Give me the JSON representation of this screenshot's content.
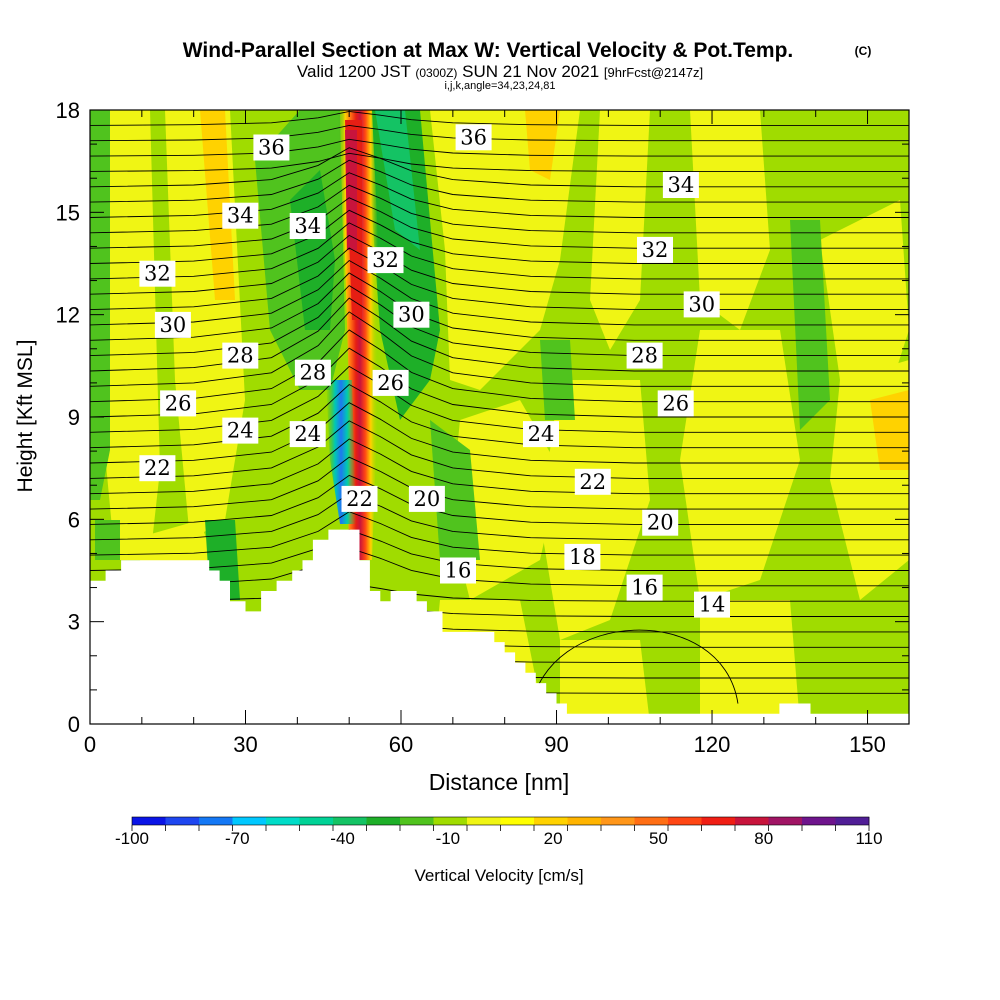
{
  "chart_data": {
    "type": "heatmap",
    "title": "Wind-Parallel Section at Max W: Vertical Velocity & Pot.Temp.",
    "copyright_mark": "(C)",
    "subtitle": "Valid 1200 JST",
    "subtitle_utc": "(0300Z)",
    "subtitle_date": "SUN 21 Nov 2021",
    "subtitle_fcst": "[9hrFcst@2147z]",
    "subtitle2": "i,j,k,angle=34,23,24,81",
    "xlabel": "Distance [nm]",
    "ylabel": "Height [Kft MSL]",
    "xlim": [
      0,
      158
    ],
    "ylim": [
      0,
      18
    ],
    "xticks": [
      "0",
      "30",
      "60",
      "90",
      "120",
      "150"
    ],
    "yticks": [
      "0",
      "3",
      "6",
      "9",
      "12",
      "15",
      "18"
    ],
    "colorbar": {
      "label": "Vertical Velocity [cm/s]",
      "tick_labels": [
        "-100",
        "-70",
        "-40",
        "-10",
        "20",
        "50",
        "80",
        "110"
      ],
      "colors": [
        "#0a14e6",
        "#1e46f0",
        "#1478f5",
        "#00c8ff",
        "#00dcc8",
        "#00d296",
        "#14c364",
        "#1eaf28",
        "#50c31e",
        "#a0dc00",
        "#f0f514",
        "#ffff00",
        "#ffd200",
        "#ffb400",
        "#ff9619",
        "#ff6e14",
        "#ff4614",
        "#f01e14",
        "#c8143c",
        "#a01464",
        "#6e148c",
        "#501e96"
      ]
    },
    "contour_field": "potential temperature",
    "contour_labels": [
      {
        "text": "36",
        "x": 35,
        "y": 16.9
      },
      {
        "text": "36",
        "x": 74,
        "y": 17.2
      },
      {
        "text": "34",
        "x": 29,
        "y": 14.9
      },
      {
        "text": "34",
        "x": 42,
        "y": 14.6
      },
      {
        "text": "34",
        "x": 114,
        "y": 15.8
      },
      {
        "text": "32",
        "x": 13,
        "y": 13.2
      },
      {
        "text": "32",
        "x": 57,
        "y": 13.6
      },
      {
        "text": "32",
        "x": 109,
        "y": 13.9
      },
      {
        "text": "30",
        "x": 16,
        "y": 11.7
      },
      {
        "text": "30",
        "x": 62,
        "y": 12.0
      },
      {
        "text": "30",
        "x": 118,
        "y": 12.3
      },
      {
        "text": "28",
        "x": 29,
        "y": 10.8
      },
      {
        "text": "28",
        "x": 43,
        "y": 10.3
      },
      {
        "text": "28",
        "x": 107,
        "y": 10.8
      },
      {
        "text": "26",
        "x": 17,
        "y": 9.4
      },
      {
        "text": "26",
        "x": 58,
        "y": 10.0
      },
      {
        "text": "26",
        "x": 113,
        "y": 9.4
      },
      {
        "text": "24",
        "x": 29,
        "y": 8.6
      },
      {
        "text": "24",
        "x": 42,
        "y": 8.5
      },
      {
        "text": "24",
        "x": 87,
        "y": 8.5
      },
      {
        "text": "22",
        "x": 13,
        "y": 7.5
      },
      {
        "text": "22",
        "x": 52,
        "y": 6.6
      },
      {
        "text": "22",
        "x": 97,
        "y": 7.1
      },
      {
        "text": "20",
        "x": 65,
        "y": 6.6
      },
      {
        "text": "20",
        "x": 110,
        "y": 5.9
      },
      {
        "text": "18",
        "x": 95,
        "y": 4.9
      },
      {
        "text": "16",
        "x": 71,
        "y": 4.5
      },
      {
        "text": "16",
        "x": 107,
        "y": 4.0
      },
      {
        "text": "14",
        "x": 120,
        "y": 3.5
      }
    ],
    "terrain_profile": [
      [
        0,
        4.2
      ],
      [
        3,
        4.2
      ],
      [
        3,
        4.5
      ],
      [
        6,
        4.5
      ],
      [
        6,
        4.8
      ],
      [
        23,
        4.8
      ],
      [
        23,
        4.5
      ],
      [
        25,
        4.5
      ],
      [
        25,
        4.2
      ],
      [
        27,
        4.2
      ],
      [
        27,
        3.6
      ],
      [
        30,
        3.6
      ],
      [
        30,
        3.3
      ],
      [
        33,
        3.3
      ],
      [
        33,
        3.9
      ],
      [
        36,
        3.9
      ],
      [
        36,
        4.2
      ],
      [
        39,
        4.2
      ],
      [
        39,
        4.5
      ],
      [
        41,
        4.5
      ],
      [
        41,
        4.8
      ],
      [
        43,
        4.8
      ],
      [
        43,
        5.4
      ],
      [
        46,
        5.4
      ],
      [
        46,
        5.7
      ],
      [
        52,
        5.7
      ],
      [
        52,
        4.8
      ],
      [
        54,
        4.8
      ],
      [
        54,
        3.9
      ],
      [
        56,
        3.9
      ],
      [
        56,
        3.6
      ],
      [
        58,
        3.6
      ],
      [
        58,
        3.9
      ],
      [
        63,
        3.9
      ],
      [
        63,
        3.6
      ],
      [
        65,
        3.6
      ],
      [
        65,
        3.3
      ],
      [
        68,
        3.3
      ],
      [
        68,
        2.7
      ],
      [
        78,
        2.7
      ],
      [
        78,
        2.4
      ],
      [
        80,
        2.4
      ],
      [
        80,
        2.1
      ],
      [
        82,
        2.1
      ],
      [
        82,
        1.8
      ],
      [
        84,
        1.8
      ],
      [
        84,
        1.5
      ],
      [
        86,
        1.5
      ],
      [
        86,
        1.2
      ],
      [
        88,
        1.2
      ],
      [
        88,
        0.9
      ],
      [
        90,
        0.9
      ],
      [
        90,
        0.6
      ],
      [
        92,
        0.6
      ],
      [
        92,
        0.3
      ],
      [
        133,
        0.3
      ],
      [
        133,
        0.6
      ],
      [
        139,
        0.6
      ],
      [
        139,
        0.3
      ],
      [
        158,
        0.3
      ]
    ]
  }
}
